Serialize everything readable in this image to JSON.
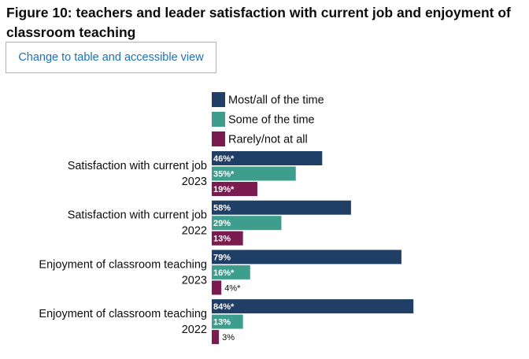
{
  "title": "Figure 10: teachers and leader satisfaction with current job and enjoyment of classroom teaching",
  "toggle_button_label": "Change to table and accessible view",
  "colors": {
    "most": "#1f3f66",
    "some": "#3e9e8e",
    "rarely": "#7a1c50",
    "link": "#1d70b8"
  },
  "chart_data": {
    "type": "bar",
    "orientation": "horizontal",
    "categories": [
      [
        "Satisfaction with current job",
        "2023"
      ],
      [
        "Satisfaction with current job",
        "2022"
      ],
      [
        "Enjoyment of classroom teaching",
        "2023"
      ],
      [
        "Enjoyment of classroom teaching",
        "2022"
      ]
    ],
    "series": [
      {
        "name": "Most/all of the time",
        "color_key": "most",
        "values": [
          46,
          58,
          79,
          84
        ],
        "labels": [
          "46%*",
          "58%",
          "79%",
          "84%*"
        ]
      },
      {
        "name": "Some of the time",
        "color_key": "some",
        "values": [
          35,
          29,
          16,
          13
        ],
        "labels": [
          "35%*",
          "29%",
          "16%*",
          "13%"
        ]
      },
      {
        "name": "Rarely/not at all",
        "color_key": "rarely",
        "values": [
          19,
          13,
          4,
          3
        ],
        "labels": [
          "19%*",
          "13%",
          "4%*",
          "3%"
        ]
      }
    ],
    "xlim": [
      0,
      100
    ],
    "legend_position": "top",
    "grid": false
  }
}
